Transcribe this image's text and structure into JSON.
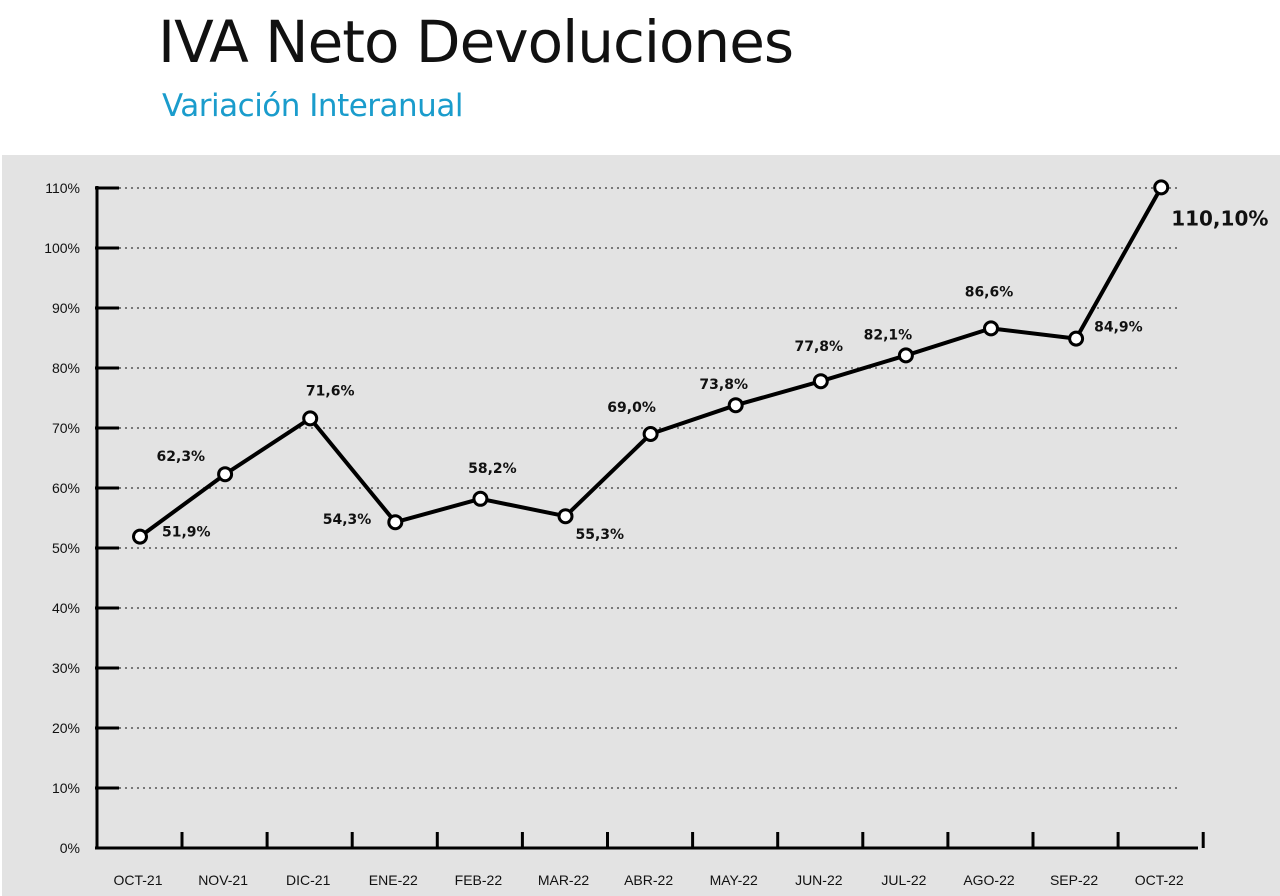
{
  "header": {
    "title": "IVA Neto Devoluciones",
    "subtitle": "Variación Interanual"
  },
  "colors": {
    "title": "#111111",
    "subtitle": "#1a9ccc",
    "panel": "#e3e3e3",
    "line": "#000000",
    "marker_fill": "#ffffff"
  },
  "chart_data": {
    "type": "line",
    "title": "IVA Neto Devoluciones",
    "subtitle": "Variación Interanual",
    "xlabel": "",
    "ylabel": "",
    "ylim": [
      0,
      110
    ],
    "y_ticks": [
      0,
      10,
      20,
      30,
      40,
      50,
      60,
      70,
      80,
      90,
      100,
      110
    ],
    "y_tick_labels": [
      "0%",
      "10%",
      "20%",
      "30%",
      "40%",
      "50%",
      "60%",
      "70%",
      "80%",
      "90%",
      "100%",
      "110%"
    ],
    "grid": "horizontal dotted",
    "categories": [
      "OCT-21",
      "NOV-21",
      "DIC-21",
      "ENE-22",
      "FEB-22",
      "MAR-22",
      "ABR-22",
      "MAY-22",
      "JUN-22",
      "JUL-22",
      "AGO-22",
      "SEP-22",
      "OCT-22"
    ],
    "series": [
      {
        "values": [
          51.9,
          62.3,
          71.6,
          54.3,
          58.2,
          55.3,
          69.0,
          73.8,
          77.8,
          82.1,
          86.6,
          84.9,
          110.1
        ],
        "data_labels": [
          "51,9%",
          "62,3%",
          "71,6%",
          "54,3%",
          "58,2%",
          "55,3%",
          "69,0%",
          "73,8%",
          "77,8%",
          "82,1%",
          "86,6%",
          "84,9%",
          "110,10%"
        ]
      }
    ]
  }
}
